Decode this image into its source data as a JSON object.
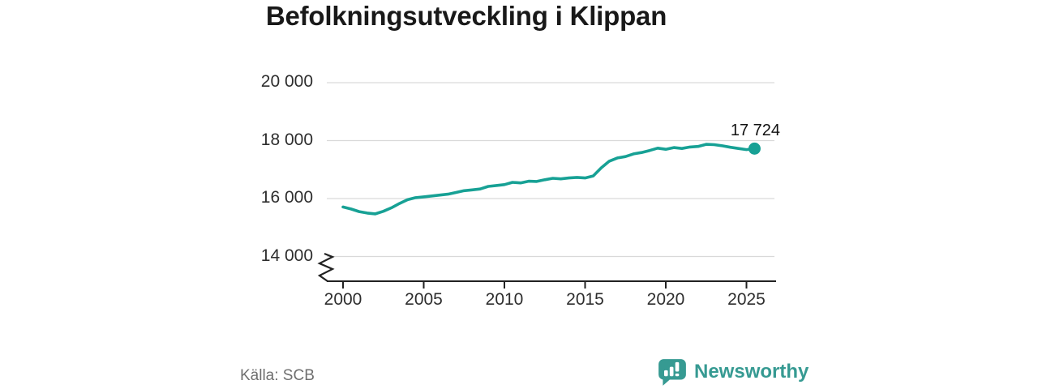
{
  "title": "Befolkningsutveckling i Klippan",
  "source": "Källa: SCB",
  "branding": {
    "name": "Newsworthy",
    "icon": "newsworthy-bubble-chart-icon",
    "color": "#369a92"
  },
  "chart_data": {
    "type": "line",
    "title": "Befolkningsutveckling i Klippan",
    "xlabel": "",
    "ylabel": "",
    "grid": true,
    "legend": "none",
    "axis_break": true,
    "line_color": "#17a195",
    "grid_color": "#d9d9d9",
    "axis_color": "#222222",
    "xlim": [
      1999,
      2026.8
    ],
    "ylim": [
      13800,
      20000
    ],
    "x_ticks": [
      2000,
      2005,
      2010,
      2015,
      2020,
      2025
    ],
    "y_ticks": [
      {
        "value": 14000,
        "label": "14 000"
      },
      {
        "value": 16000,
        "label": "16 000"
      },
      {
        "value": 18000,
        "label": "18 000"
      },
      {
        "value": 20000,
        "label": "20 000"
      }
    ],
    "end_label": "17 724",
    "end_value": 17724,
    "series": [
      {
        "name": "Befolkning",
        "color": "#17a195",
        "x": [
          2000,
          2000.5,
          2001,
          2001.5,
          2002,
          2002.5,
          2003,
          2003.5,
          2004,
          2004.5,
          2005,
          2005.5,
          2006,
          2006.5,
          2007,
          2007.5,
          2008,
          2008.5,
          2009,
          2009.5,
          2010,
          2010.5,
          2011,
          2011.5,
          2012,
          2012.5,
          2013,
          2013.5,
          2014,
          2014.5,
          2015,
          2015.5,
          2016,
          2016.5,
          2017,
          2017.5,
          2018,
          2018.5,
          2019,
          2019.5,
          2020,
          2020.5,
          2021,
          2021.5,
          2022,
          2022.5,
          2023,
          2023.5,
          2024,
          2024.5,
          2025,
          2025.5
        ],
        "values": [
          15710,
          15640,
          15550,
          15500,
          15470,
          15560,
          15680,
          15830,
          15960,
          16030,
          16060,
          16090,
          16120,
          16150,
          16210,
          16270,
          16300,
          16330,
          16420,
          16450,
          16480,
          16560,
          16540,
          16600,
          16590,
          16650,
          16700,
          16680,
          16710,
          16730,
          16710,
          16780,
          17060,
          17290,
          17400,
          17450,
          17540,
          17590,
          17660,
          17740,
          17700,
          17760,
          17730,
          17780,
          17800,
          17870,
          17860,
          17820,
          17770,
          17730,
          17690,
          17724
        ]
      }
    ]
  }
}
